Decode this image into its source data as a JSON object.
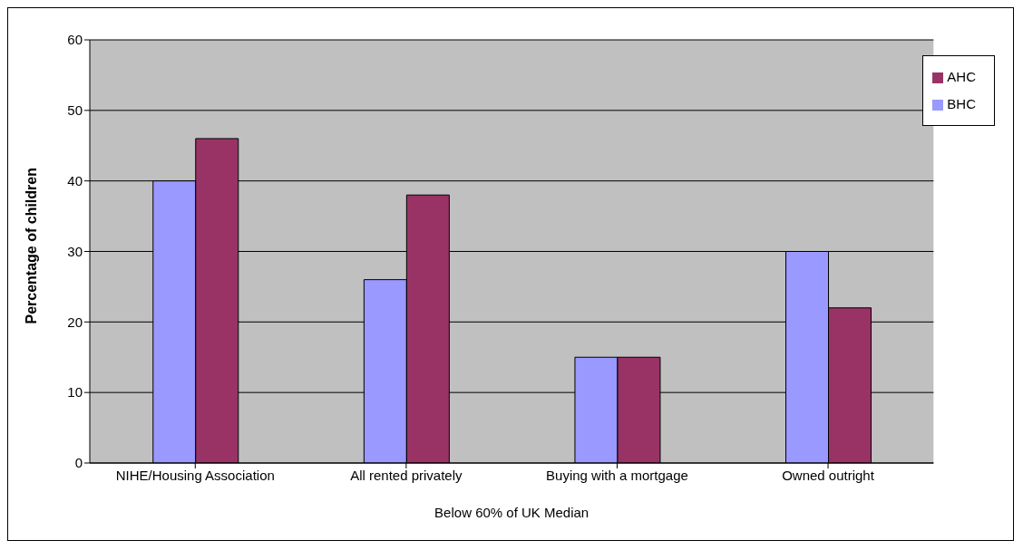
{
  "chart_data": {
    "type": "bar",
    "ylabel": "Percentage of children",
    "xlabel": "Below 60% of UK Median",
    "categories": [
      "NIHE/Housing Association",
      "All rented privately",
      "Buying with a mortgage",
      "Owned outright"
    ],
    "series": [
      {
        "name": "BHC",
        "color": "#9999ff",
        "values": [
          40,
          26,
          15,
          30
        ]
      },
      {
        "name": "AHC",
        "color": "#993366",
        "values": [
          46,
          38,
          15,
          22
        ]
      }
    ],
    "ylim": [
      0,
      60
    ],
    "yticks": [
      0,
      10,
      20,
      30,
      40,
      50,
      60
    ],
    "grid": "y",
    "legend": "top right"
  }
}
